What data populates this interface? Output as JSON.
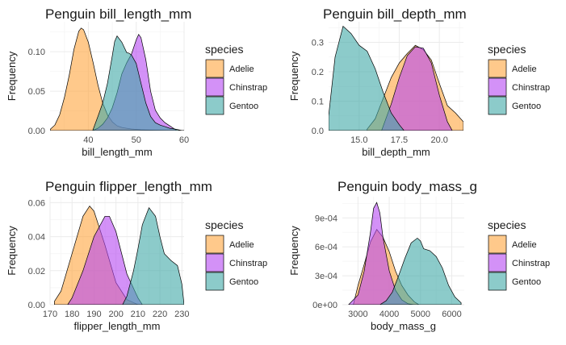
{
  "colors": {
    "Adelie": "#FFA53E",
    "Chinstrap": "#B548F2",
    "Gentoo": "#3FA9A6",
    "grid_major": "#EBEBEB",
    "grid_minor": "#F5F5F5"
  },
  "legend": {
    "title": "species",
    "entries": [
      "Adelie",
      "Chinstrap",
      "Gentoo"
    ],
    "position": "right"
  },
  "chart_data": [
    {
      "type": "area",
      "title": "Penguin bill_length_mm",
      "xlabel": "bill_length_mm",
      "ylabel": "Frequency",
      "xlim": [
        32,
        60
      ],
      "ylim": [
        0,
        0.138
      ],
      "xticks": [
        40,
        50,
        60
      ],
      "yticks": [
        0.0,
        0.05,
        0.1
      ],
      "ytick_labels": [
        "0.00",
        "0.05",
        "0.10"
      ],
      "grid": true,
      "series": [
        {
          "name": "Adelie",
          "x": [
            32.1,
            33,
            34,
            35,
            36,
            37,
            38,
            38.5,
            39,
            40,
            41,
            42,
            43,
            44,
            45,
            46,
            47,
            48,
            49,
            50,
            51,
            52,
            53,
            54,
            55,
            56,
            57,
            58,
            59,
            60,
            60.5
          ],
          "values": [
            0.002,
            0.007,
            0.02,
            0.042,
            0.07,
            0.103,
            0.126,
            0.13,
            0.128,
            0.112,
            0.086,
            0.058,
            0.035,
            0.02,
            0.011,
            0.006,
            0.004,
            0.003,
            0.002,
            0.0015,
            0.001,
            0.0008,
            0.0006,
            0.0005,
            0.0004,
            0.0003,
            0.0002,
            0.0001,
            0.0001,
            0.0001,
            0
          ]
        },
        {
          "name": "Chinstrap",
          "x": [
            40.9,
            42,
            43,
            44,
            45,
            46,
            47,
            48,
            49,
            50,
            50.5,
            51,
            52,
            53,
            54,
            55,
            56,
            57,
            58,
            58.5
          ],
          "values": [
            0,
            0.003,
            0.008,
            0.016,
            0.029,
            0.048,
            0.072,
            0.086,
            0.097,
            0.115,
            0.122,
            0.118,
            0.09,
            0.05,
            0.026,
            0.016,
            0.01,
            0.006,
            0.002,
            0
          ]
        },
        {
          "name": "Gentoo",
          "x": [
            40.9,
            42,
            43,
            44,
            45,
            45.5,
            46,
            47,
            48,
            48.5,
            49,
            50,
            51,
            52,
            53,
            54,
            55,
            56,
            57,
            58,
            59.6
          ],
          "values": [
            0,
            0.018,
            0.035,
            0.06,
            0.095,
            0.113,
            0.12,
            0.112,
            0.099,
            0.098,
            0.096,
            0.085,
            0.06,
            0.035,
            0.018,
            0.01,
            0.007,
            0.005,
            0.003,
            0.002,
            0
          ]
        }
      ]
    },
    {
      "type": "area",
      "title": "Penguin bill_depth_mm",
      "xlabel": "bill_depth_mm",
      "ylabel": "Frequency",
      "xlim": [
        13.1,
        21.5
      ],
      "ylim": [
        0,
        0.37
      ],
      "xticks": [
        15.0,
        17.5,
        20.0
      ],
      "xtick_labels": [
        "15.0",
        "17.5",
        "20.0"
      ],
      "yticks": [
        0.0,
        0.1,
        0.2,
        0.3
      ],
      "ytick_labels": [
        "0.0",
        "0.1",
        "0.2",
        "0.3"
      ],
      "grid": true,
      "series": [
        {
          "name": "Adelie",
          "x": [
            15.5,
            16,
            16.5,
            17,
            17.5,
            18,
            18.5,
            19,
            19.5,
            20,
            20.5,
            21,
            21.5
          ],
          "values": [
            0.005,
            0.04,
            0.11,
            0.18,
            0.23,
            0.262,
            0.29,
            0.275,
            0.24,
            0.16,
            0.085,
            0.06,
            0.03
          ]
        },
        {
          "name": "Chinstrap",
          "x": [
            16.4,
            17,
            17.5,
            18,
            18.5,
            19,
            19.5,
            20,
            20.5,
            20.8
          ],
          "values": [
            0,
            0.09,
            0.18,
            0.255,
            0.285,
            0.28,
            0.23,
            0.12,
            0.03,
            0
          ]
        },
        {
          "name": "Gentoo",
          "x": [
            13.1,
            13.5,
            14,
            14.5,
            15,
            15.5,
            16,
            16.5,
            17,
            17.5,
            17.8
          ],
          "values": [
            0.05,
            0.25,
            0.355,
            0.33,
            0.29,
            0.27,
            0.21,
            0.13,
            0.06,
            0.02,
            0
          ]
        }
      ]
    },
    {
      "type": "area",
      "title": "Penguin flipper_length_mm",
      "xlabel": "flipper_length_mm",
      "ylabel": "Frequency",
      "xlim": [
        170,
        231
      ],
      "ylim": [
        0,
        0.0635
      ],
      "xticks": [
        170,
        180,
        190,
        200,
        210,
        220,
        230
      ],
      "yticks": [
        0.0,
        0.02,
        0.04,
        0.06
      ],
      "ytick_labels": [
        "0.00",
        "0.02",
        "0.04",
        "0.06"
      ],
      "grid": true,
      "series": [
        {
          "name": "Adelie",
          "x": [
            172,
            175,
            180,
            185,
            188,
            190,
            195,
            200,
            205,
            210
          ],
          "values": [
            0.002,
            0.008,
            0.03,
            0.052,
            0.058,
            0.055,
            0.035,
            0.013,
            0.003,
            0
          ]
        },
        {
          "name": "Chinstrap",
          "x": [
            178,
            180,
            185,
            190,
            195,
            197,
            200,
            205,
            210,
            212
          ],
          "values": [
            0,
            0.004,
            0.02,
            0.04,
            0.052,
            0.052,
            0.043,
            0.018,
            0.004,
            0
          ]
        },
        {
          "name": "Gentoo",
          "x": [
            203,
            205,
            208,
            210,
            212,
            215,
            218,
            220,
            222,
            225,
            228,
            230,
            231
          ],
          "values": [
            0,
            0.005,
            0.02,
            0.033,
            0.047,
            0.057,
            0.052,
            0.04,
            0.03,
            0.026,
            0.023,
            0.012,
            0
          ]
        }
      ]
    },
    {
      "type": "area",
      "title": "Penguin body_mass_g",
      "xlabel": "body_mass_g",
      "ylabel": "Frequency",
      "xlim": [
        2500,
        6400
      ],
      "ylim": [
        0,
        0.00112
      ],
      "xticks": [
        3000,
        4000,
        5000,
        6000
      ],
      "yticks": [
        0,
        0.0003,
        0.0006,
        0.0009
      ],
      "ytick_labels": [
        "0e+00",
        "3e-04",
        "6e-04",
        "9e-04"
      ],
      "grid": true,
      "series": [
        {
          "name": "Adelie",
          "x": [
            2850,
            3000,
            3200,
            3400,
            3600,
            3800,
            4000,
            4200,
            4400,
            4600,
            4800,
            4950
          ],
          "values": [
            0,
            0.0002,
            0.00042,
            0.00065,
            0.00078,
            0.0007,
            0.00055,
            0.00035,
            0.0002,
            0.0001,
            3e-05,
            0
          ]
        },
        {
          "name": "Chinstrap",
          "x": [
            2700,
            3000,
            3200,
            3400,
            3500,
            3600,
            3700,
            3800,
            4000,
            4200,
            4400,
            4600,
            4800
          ],
          "values": [
            0,
            0.0001,
            0.00035,
            0.00075,
            0.001,
            0.00106,
            0.00095,
            0.0007,
            0.00035,
            0.00015,
            5e-05,
            1e-05,
            0
          ]
        },
        {
          "name": "Gentoo",
          "x": [
            3700,
            3900,
            4100,
            4300,
            4500,
            4700,
            4900,
            5000,
            5100,
            5300,
            5500,
            5700,
            5900,
            6100,
            6300
          ],
          "values": [
            0,
            4e-05,
            0.00013,
            0.0003,
            0.00048,
            0.00064,
            0.00069,
            0.00066,
            0.00058,
            0.00056,
            0.0005,
            0.00038,
            0.0002,
            8e-05,
            2e-05
          ]
        }
      ]
    }
  ]
}
